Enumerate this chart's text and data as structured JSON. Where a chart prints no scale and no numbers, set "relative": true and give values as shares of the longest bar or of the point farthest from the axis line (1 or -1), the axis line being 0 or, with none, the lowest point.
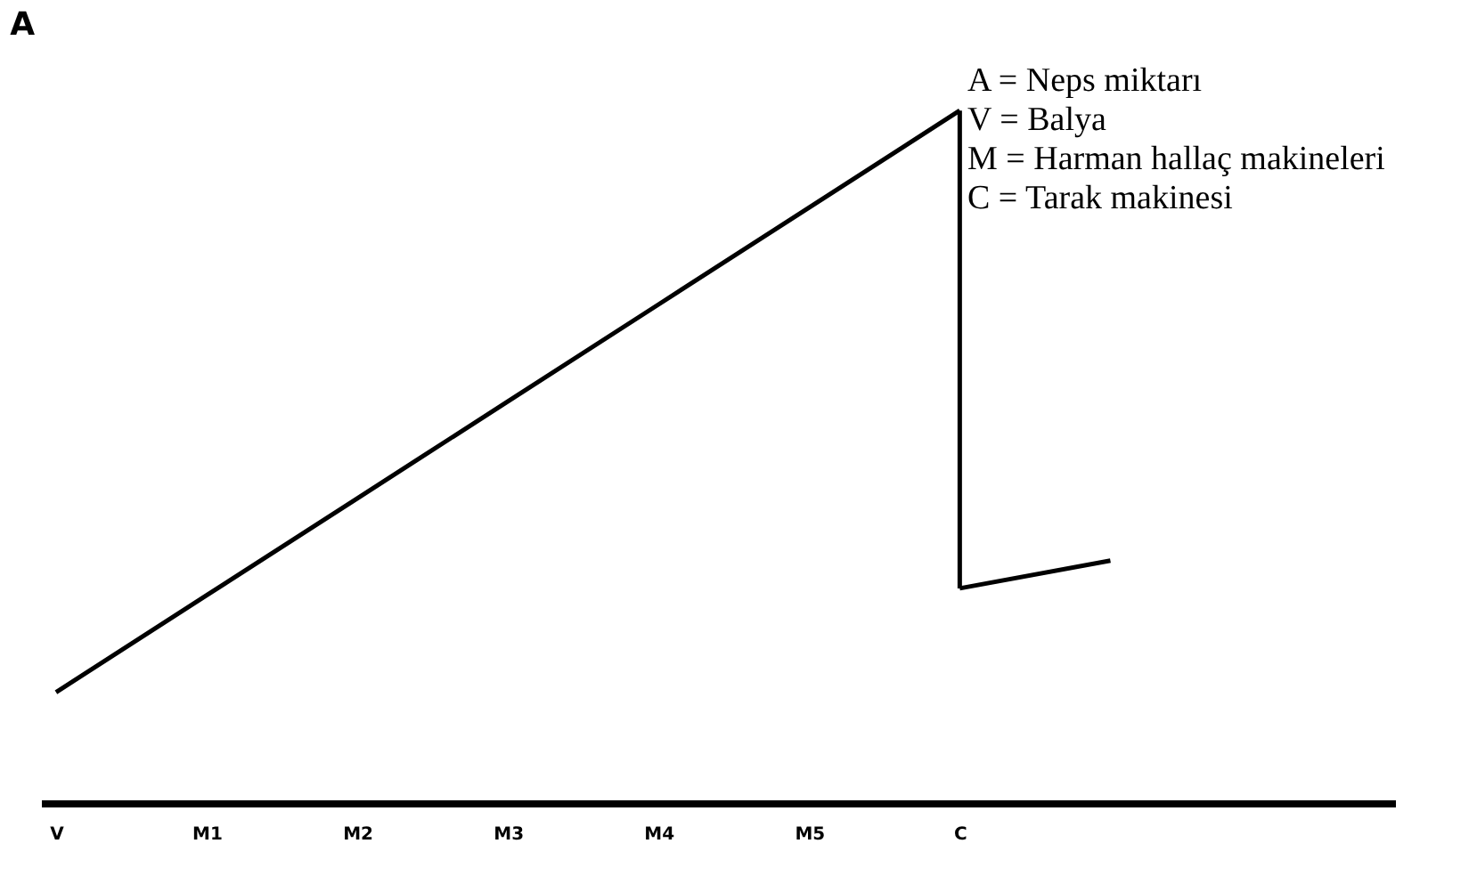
{
  "chart_data": {
    "type": "line",
    "relative": true,
    "ylabel": "A",
    "categories": [
      "V",
      "M1",
      "M2",
      "M3",
      "M4",
      "M5",
      "C",
      null
    ],
    "series": [
      {
        "color": "#000000",
        "values": [
          0.16,
          0.3,
          0.44,
          0.58,
          0.72,
          0.86,
          1,
          null
        ]
      },
      {
        "color": "#000000",
        "values": [
          null,
          null,
          null,
          null,
          null,
          null,
          0.31,
          0.35
        ]
      }
    ],
    "tick_labels": "x",
    "grid": false,
    "marker": "none",
    "line_style": "solid",
    "annotations": [
      "A = Neps miktarı",
      "V = Balya",
      "M = Harman hallaç makineleri",
      "C = Tarak makinesi"
    ]
  }
}
